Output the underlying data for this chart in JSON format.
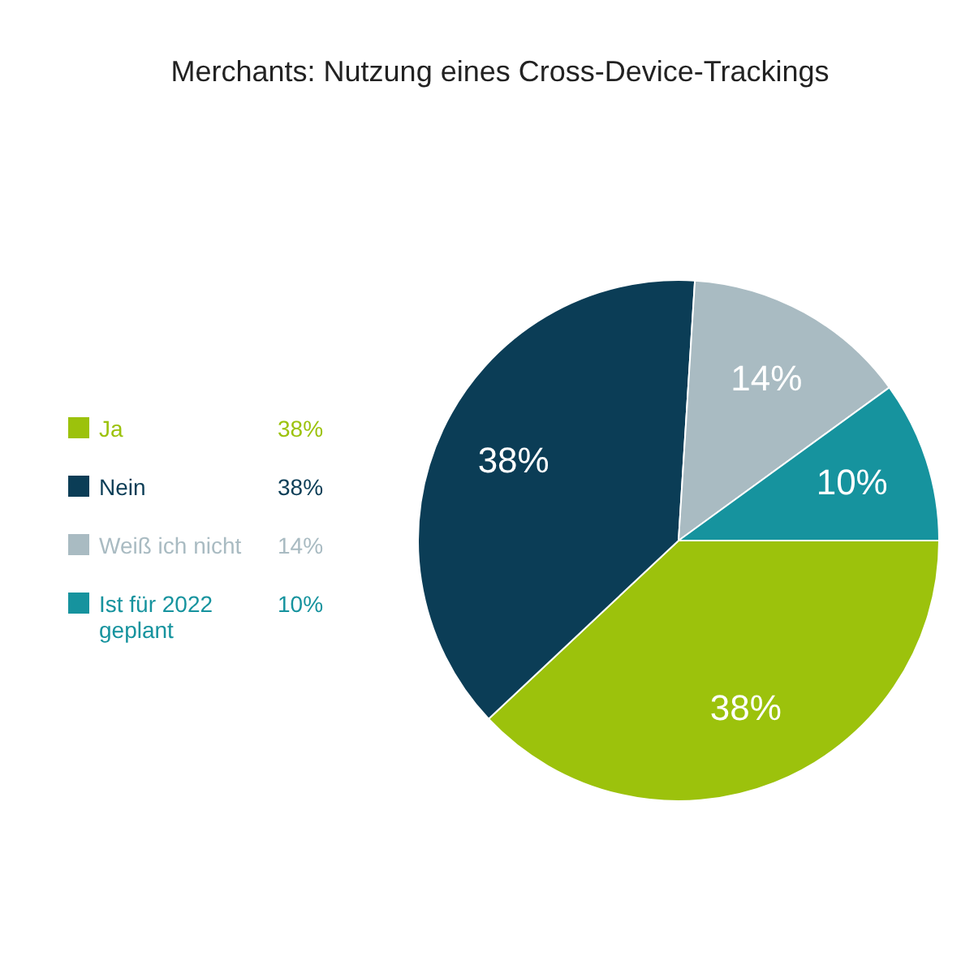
{
  "chart_data": {
    "type": "pie",
    "title": "Merchants: Nutzung eines Cross-Device-Trackings",
    "categories": [
      "Ja",
      "Nein",
      "Weiß ich nicht",
      "Ist für 2022 geplant"
    ],
    "values": [
      38,
      38,
      14,
      10
    ],
    "colors": [
      "#9cc20c",
      "#0b3d56",
      "#a9bbc2",
      "#16939e"
    ],
    "value_labels": [
      "38%",
      "38%",
      "14%",
      "10%"
    ],
    "legend": "left"
  }
}
